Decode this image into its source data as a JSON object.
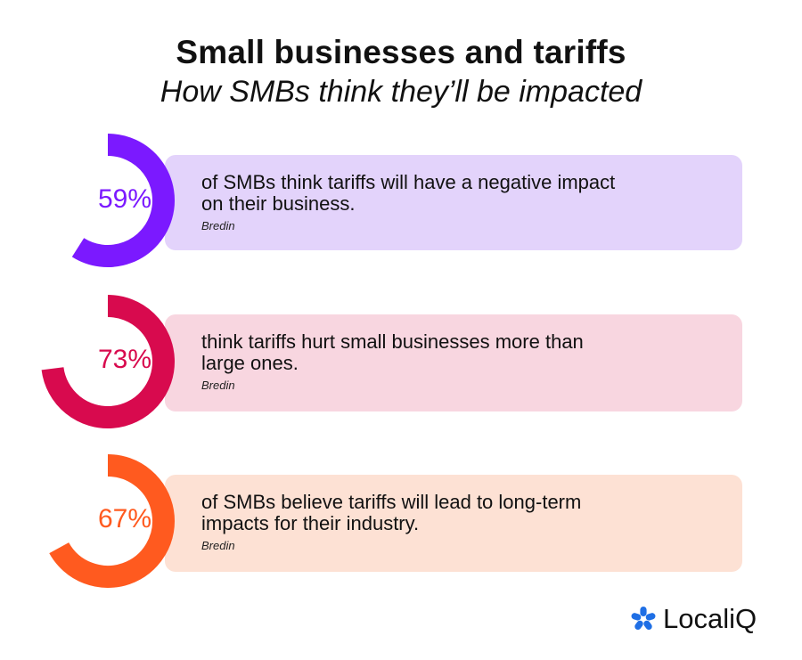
{
  "header": {
    "title": "Small businesses and tariffs",
    "subtitle": "How SMBs think they’ll be impacted"
  },
  "chart_data": {
    "type": "donut",
    "title": "Small businesses and tariffs",
    "subtitle": "How SMBs think they’ll be impacted",
    "items": [
      {
        "label": "59%",
        "value": 59,
        "text": "of SMBs think tariffs will have a negative impact on their business.",
        "line1": "of SMBs think tariffs will have a negative impact",
        "line2": "on their business.",
        "source": "Bredin",
        "color": "#7b19ff",
        "card_color": "#e3d3fb"
      },
      {
        "label": "73%",
        "value": 73,
        "text": "think tariffs hurt small businesses more than large ones.",
        "line1": "think tariffs hurt small businesses more than",
        "line2": "large ones.",
        "source": "Bredin",
        "color": "#d80a4e",
        "card_color": "#f8d6e0"
      },
      {
        "label": "67%",
        "value": 67,
        "text": "of SMBs believe tariffs will lead to long-term impacts for their industry.",
        "line1": "of SMBs believe tariffs will lead to long-term",
        "line2": "impacts for their industry.",
        "source": "Bredin",
        "color": "#ff5a1f",
        "card_color": "#fde1d4"
      }
    ]
  },
  "brand": {
    "name": "LocaliQ",
    "icon": "asterisk-logo-icon",
    "icon_color": "#1f6fe5"
  }
}
